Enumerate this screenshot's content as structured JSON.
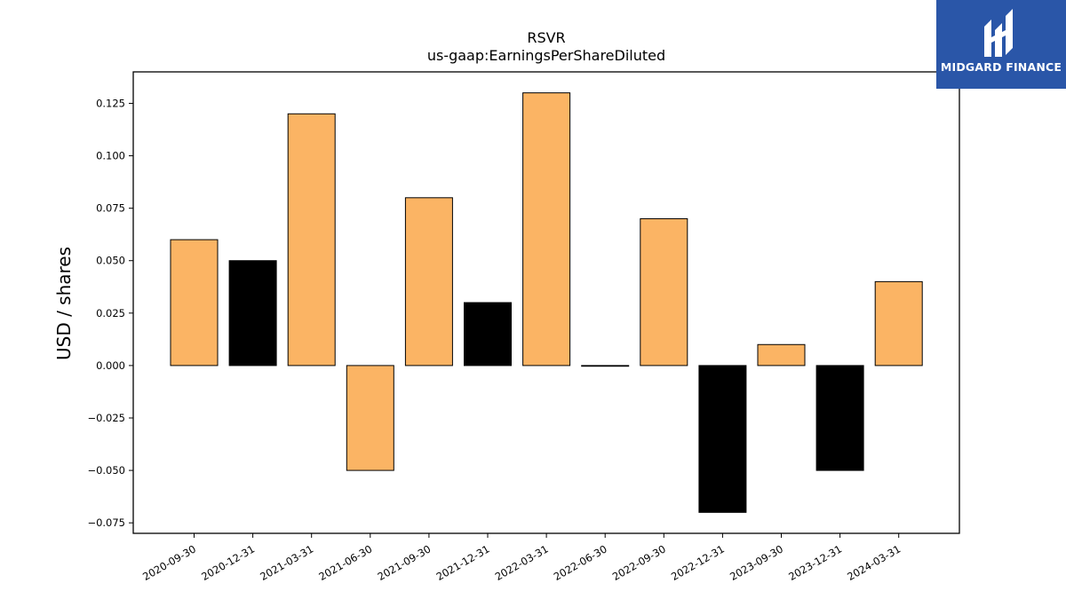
{
  "chart_data": {
    "type": "bar",
    "title": "RSVR",
    "subtitle": "us-gaap:EarningsPerShareDiluted",
    "xlabel": "",
    "ylabel": "USD / shares",
    "ylim": [
      -0.08,
      0.14
    ],
    "yticks": [
      "−0.075",
      "−0.050",
      "−0.025",
      "0.000",
      "0.025",
      "0.050",
      "0.075",
      "0.100",
      "0.125"
    ],
    "ytick_values": [
      -0.075,
      -0.05,
      -0.025,
      0.0,
      0.025,
      0.05,
      0.075,
      0.1,
      0.125
    ],
    "categories": [
      "2020-09-30",
      "2020-12-31",
      "2021-03-31",
      "2021-06-30",
      "2021-09-30",
      "2021-12-31",
      "2022-03-31",
      "2022-06-30",
      "2022-09-30",
      "2022-12-31",
      "2023-09-30",
      "2023-12-31",
      "2024-03-31"
    ],
    "values": [
      0.06,
      0.05,
      0.12,
      -0.05,
      0.08,
      0.03,
      0.13,
      0.0,
      0.07,
      -0.07,
      0.01,
      -0.05,
      0.04
    ],
    "bar_colors": [
      "#fbb464",
      "#000000",
      "#fbb464",
      "#fbb464",
      "#fbb464",
      "#000000",
      "#fbb464",
      "#000000",
      "#fbb464",
      "#000000",
      "#fbb464",
      "#000000",
      "#fbb464"
    ],
    "grid": false,
    "legend": "none"
  },
  "logo": {
    "text": "MIDGARD FINANCE",
    "background": "#2a56a8",
    "icon": "midgard-logo-icon"
  }
}
